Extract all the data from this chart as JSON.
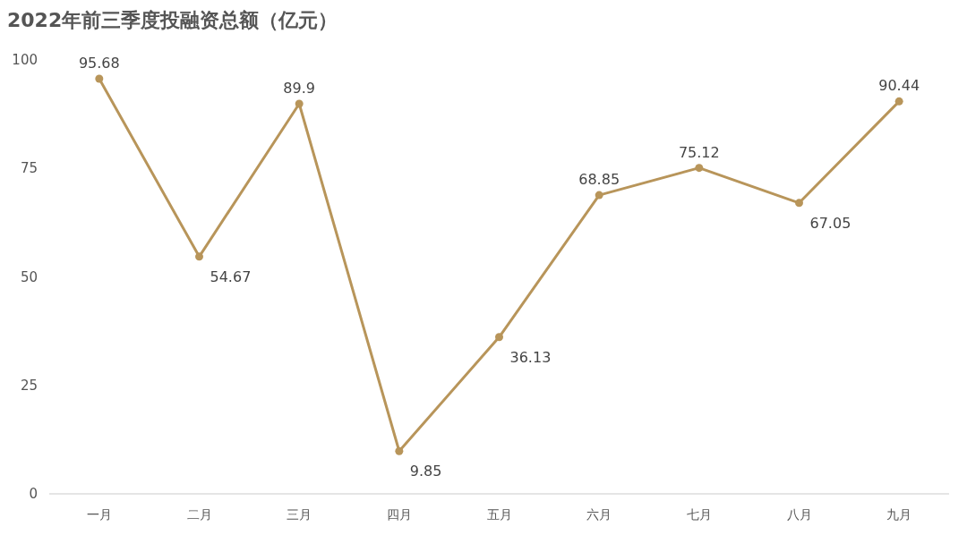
{
  "chart_data": {
    "type": "line",
    "title": "2022年前三季度投融资总额（亿元）",
    "categories": [
      "一月",
      "二月",
      "三月",
      "四月",
      "五月",
      "六月",
      "七月",
      "八月",
      "九月"
    ],
    "series": [
      {
        "color": "#b8955a",
        "values": [
          95.68,
          54.67,
          89.9,
          9.85,
          36.13,
          68.85,
          75.12,
          67.05,
          90.44
        ]
      }
    ],
    "ylim": [
      0,
      100
    ],
    "yticks": [
      0,
      25,
      50,
      75,
      100
    ],
    "grid": false,
    "marker": "circle",
    "line_style": "solid",
    "data_labels": true
  }
}
